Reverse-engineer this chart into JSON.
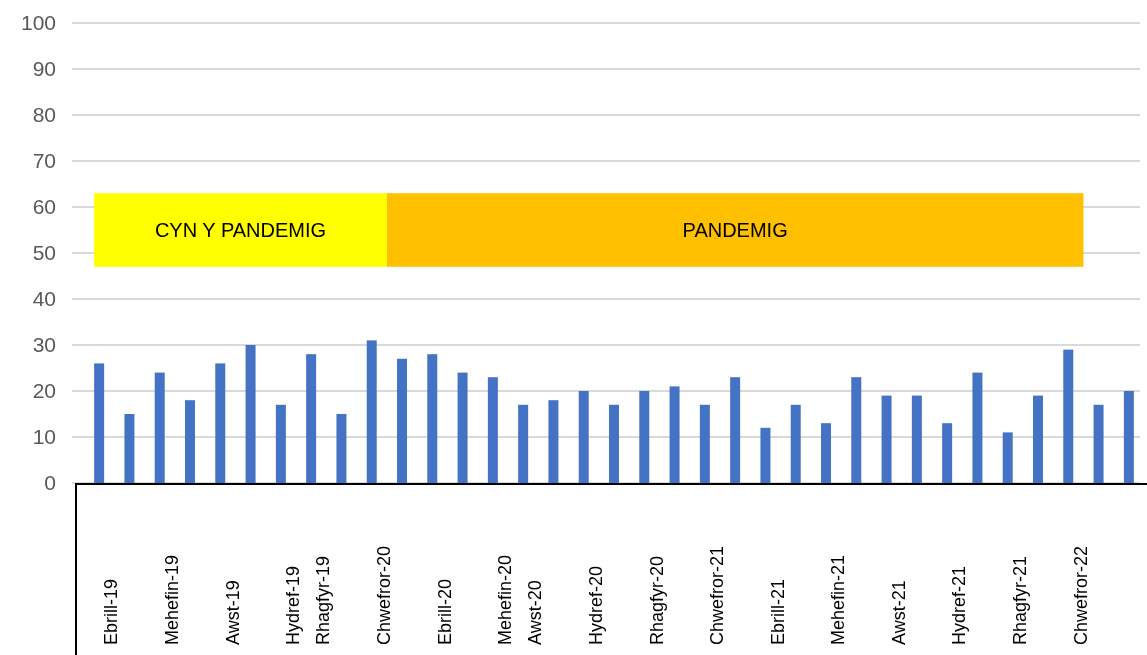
{
  "chart_data": {
    "type": "bar",
    "categories": [
      "Ebrill-19",
      null,
      "Mehefin-19",
      null,
      "Awst-19",
      null,
      "Hydref-19",
      "Rhagfyr-19",
      null,
      "Chwefror-20",
      null,
      "Ebrill-20",
      null,
      "Mehefin-20",
      "Awst-20",
      null,
      "Hydref-20",
      null,
      "Rhagfyr-20",
      null,
      "Chwefror-21",
      null,
      "Ebrill-21",
      null,
      "Mehefin-21",
      null,
      "Awst-21",
      null,
      "Hydref-21",
      null,
      "Rhagfyr-21",
      null,
      "Chwefror-22",
      null,
      null
    ],
    "values": [
      26,
      15,
      24,
      18,
      26,
      30,
      17,
      28,
      15,
      31,
      27,
      28,
      24,
      23,
      17,
      18,
      20,
      17,
      20,
      21,
      17,
      23,
      12,
      17,
      13,
      23,
      19,
      19,
      13,
      24,
      11,
      19,
      29,
      17,
      20
    ],
    "color": "#4472c4",
    "ylim": [
      0,
      100
    ],
    "yticks": [
      0,
      10,
      20,
      30,
      40,
      50,
      60,
      70,
      80,
      90,
      100
    ],
    "grid": "y",
    "bands": [
      {
        "axis": "x",
        "from": "Ebrill-19",
        "to": "Chwefror-20",
        "label": "CYN Y PANDEMIG",
        "color": "#ffff00"
      },
      {
        "axis": "x",
        "from": "Chwefror-20",
        "to": "Chwefror-22",
        "label": "PANDEMIG",
        "color": "#ffc000"
      }
    ]
  }
}
